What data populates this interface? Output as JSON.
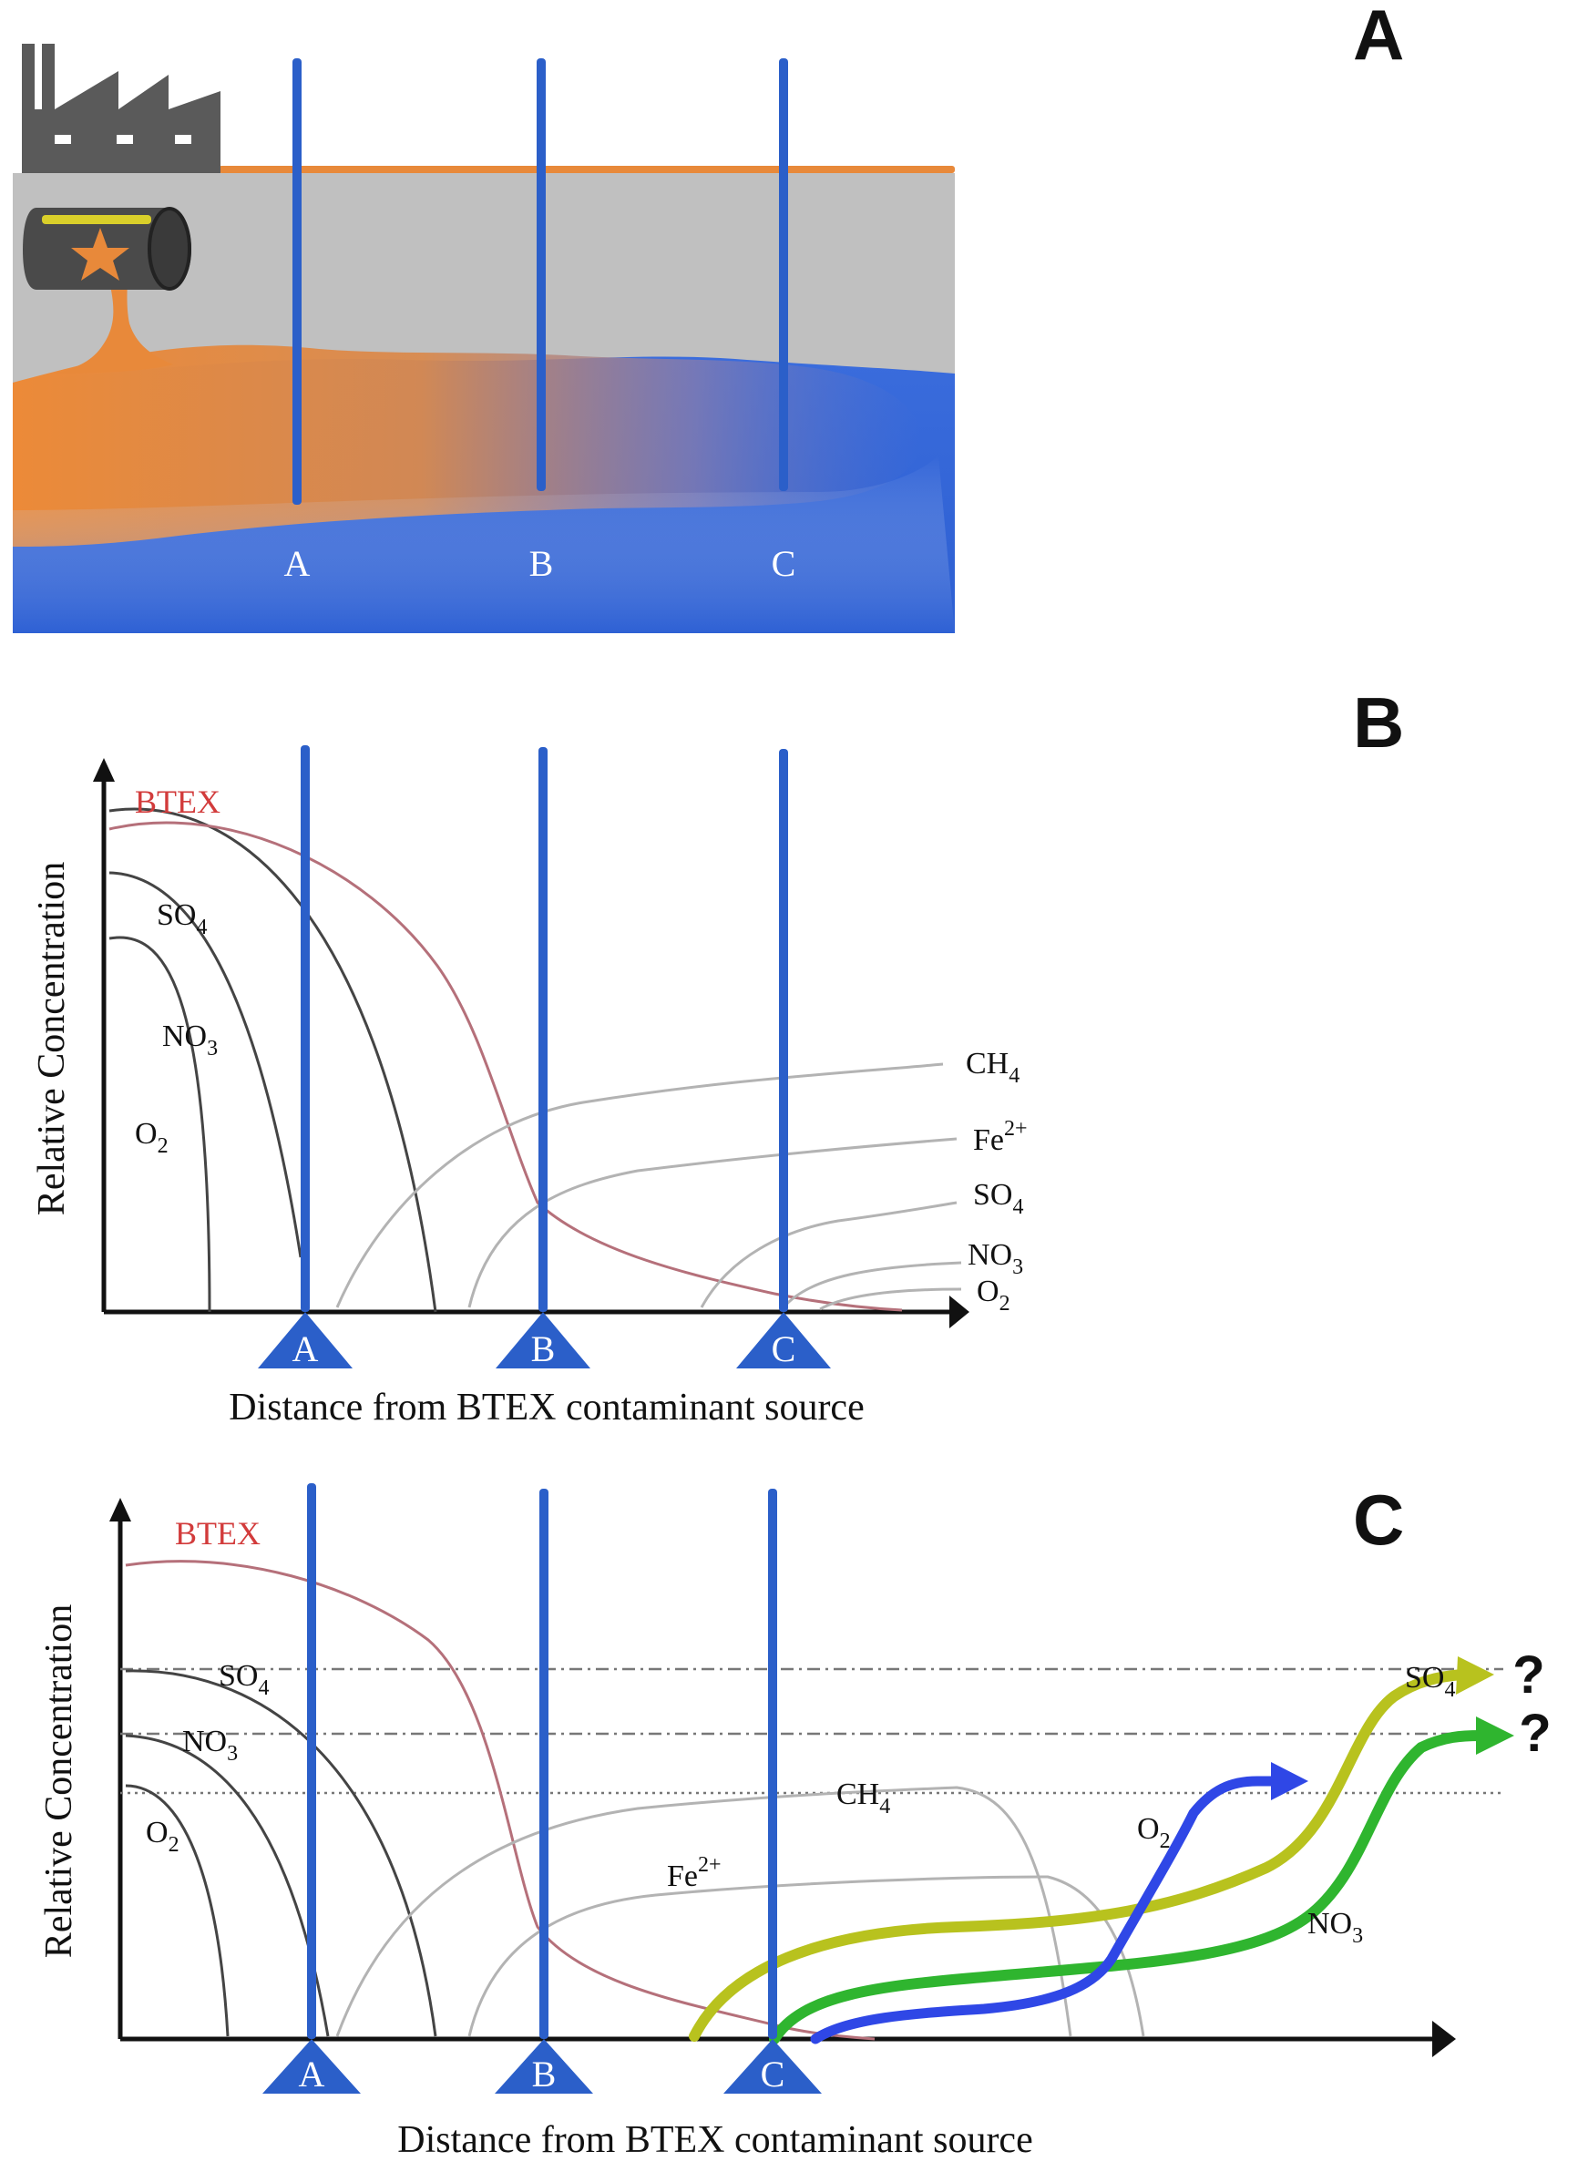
{
  "panels": {
    "A": {
      "letter": "A",
      "wells": [
        "A",
        "B",
        "C"
      ]
    },
    "B": {
      "letter": "B",
      "y_axis_title": "Relative Concentration",
      "x_axis_title": "Distance from BTEX contaminant source",
      "btex": "BTEX",
      "wells": [
        "A",
        "B",
        "C"
      ],
      "species_left": [
        {
          "base": "SO",
          "sub": "4",
          "sup": ""
        },
        {
          "base": "NO",
          "sub": "3",
          "sup": ""
        },
        {
          "base": "O",
          "sub": "2",
          "sup": ""
        }
      ],
      "species_right": [
        {
          "base": "CH",
          "sub": "4",
          "sup": ""
        },
        {
          "base": "Fe",
          "sub": "",
          "sup": "2+"
        },
        {
          "base": "SO",
          "sub": "4",
          "sup": ""
        },
        {
          "base": "NO",
          "sub": "3",
          "sup": ""
        },
        {
          "base": "O",
          "sub": "2",
          "sup": ""
        }
      ]
    },
    "C": {
      "letter": "C",
      "y_axis_title": "Relative Concentration",
      "x_axis_title": "Distance from BTEX contaminant source",
      "btex": "BTEX",
      "wells": [
        "A",
        "B",
        "C"
      ],
      "species_left": [
        {
          "base": "SO",
          "sub": "4",
          "sup": ""
        },
        {
          "base": "NO",
          "sub": "3",
          "sup": ""
        },
        {
          "base": "O",
          "sub": "2",
          "sup": ""
        }
      ],
      "species_mid": [
        {
          "base": "CH",
          "sub": "4",
          "sup": ""
        },
        {
          "base": "Fe",
          "sub": "",
          "sup": "2+"
        }
      ],
      "rising_arrows": [
        {
          "base": "SO",
          "sub": "4",
          "sup": ""
        },
        {
          "base": "O",
          "sub": "2",
          "sup": ""
        },
        {
          "base": "NO",
          "sub": "3",
          "sup": ""
        }
      ],
      "question_marks": [
        "?",
        "?"
      ]
    }
  },
  "colors": {
    "well": "#2b5fc9",
    "btex_curve": "#b5707a",
    "dark_curve": "#444444",
    "light_curve": "#b3b3b3",
    "btex_label": "#d23b3b",
    "plume": "#e8893a",
    "groundwater": "#2f62d6",
    "soil": "#c0c0c0",
    "factory": "#5a5a5a",
    "arrow_so4": "#b8c21e",
    "arrow_no3": "#2fb52f",
    "arrow_o2": "#2f47e6"
  }
}
